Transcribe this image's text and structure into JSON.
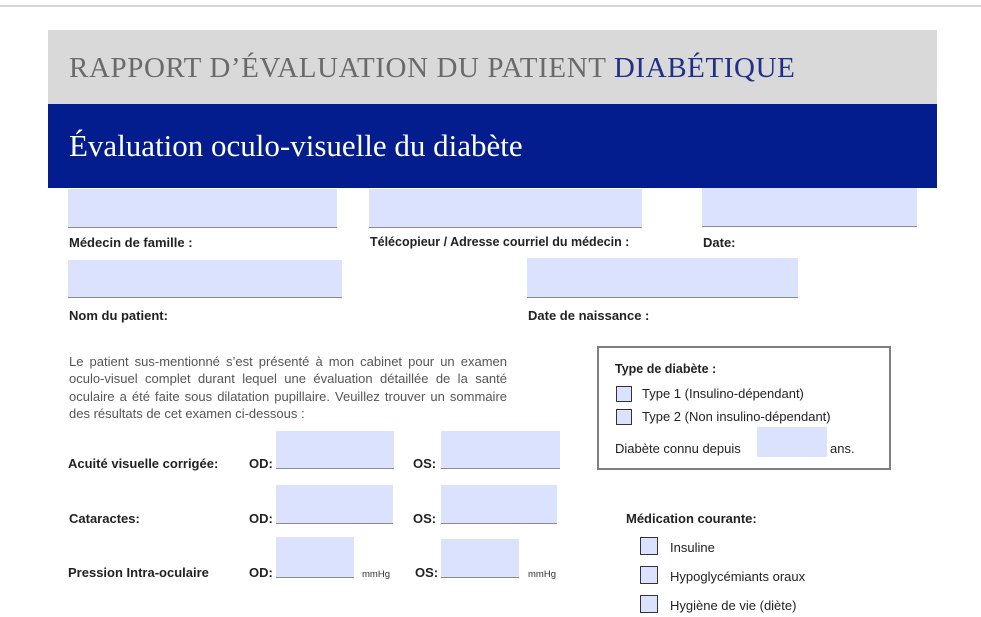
{
  "header": {
    "title_main": "RAPPORT D’ÉVALUATION DU PATIENT ",
    "title_accent": "DIABÉTIQUE",
    "subtitle": "Évaluation oculo-visuelle du diabète"
  },
  "colors": {
    "header_gray": "#d9d9d9",
    "header_blue": "#031d8e",
    "field_fill": "#dbe2fd",
    "accent_text": "#1f2f8a"
  },
  "labels": {
    "family_doctor": "Médecin de famille :",
    "fax_email": "Télécopieur / Adresse courriel du médecin :",
    "date": "Date:",
    "patient_name": "Nom du patient:",
    "birth_date": "Date de naissance :"
  },
  "intro_text": "Le patient sus-mentionné s’est présenté à mon cabinet pour un examen oculo-visuel complet durant lequel une évaluation détaillée de la santé oculaire a été faite sous dilatation pupillaire. Veuillez trouver un sommaire des résultats de cet examen ci-dessous :",
  "exam": {
    "od_label": "OD:",
    "os_label": "OS:",
    "unit_mmhg": "mmHg",
    "rows": [
      {
        "label": "Acuité visuelle corrigée:",
        "od": "",
        "os": ""
      },
      {
        "label": "Cataractes:",
        "od": "",
        "os": ""
      },
      {
        "label": "Pression Intra-oculaire",
        "od": "",
        "os": ""
      }
    ]
  },
  "diabetes_type": {
    "title": "Type de diabète :",
    "options": [
      {
        "label": "Type 1 (Insulino-dépendant)",
        "checked": false
      },
      {
        "label": "Type 2 (Non insulino-dépendant)",
        "checked": false
      }
    ],
    "known_since_prefix": "Diabète connu depuis",
    "known_since_value": "",
    "known_since_suffix": "ans."
  },
  "medication": {
    "title": "Médication courante:",
    "options": [
      {
        "label": "Insuline",
        "checked": false
      },
      {
        "label": "Hypoglycémiants oraux",
        "checked": false
      },
      {
        "label": "Hygiène de vie (diète)",
        "checked": false
      }
    ]
  },
  "fields": {
    "family_doctor": "",
    "fax_email": "",
    "date": "",
    "patient_name": "",
    "birth_date": ""
  }
}
